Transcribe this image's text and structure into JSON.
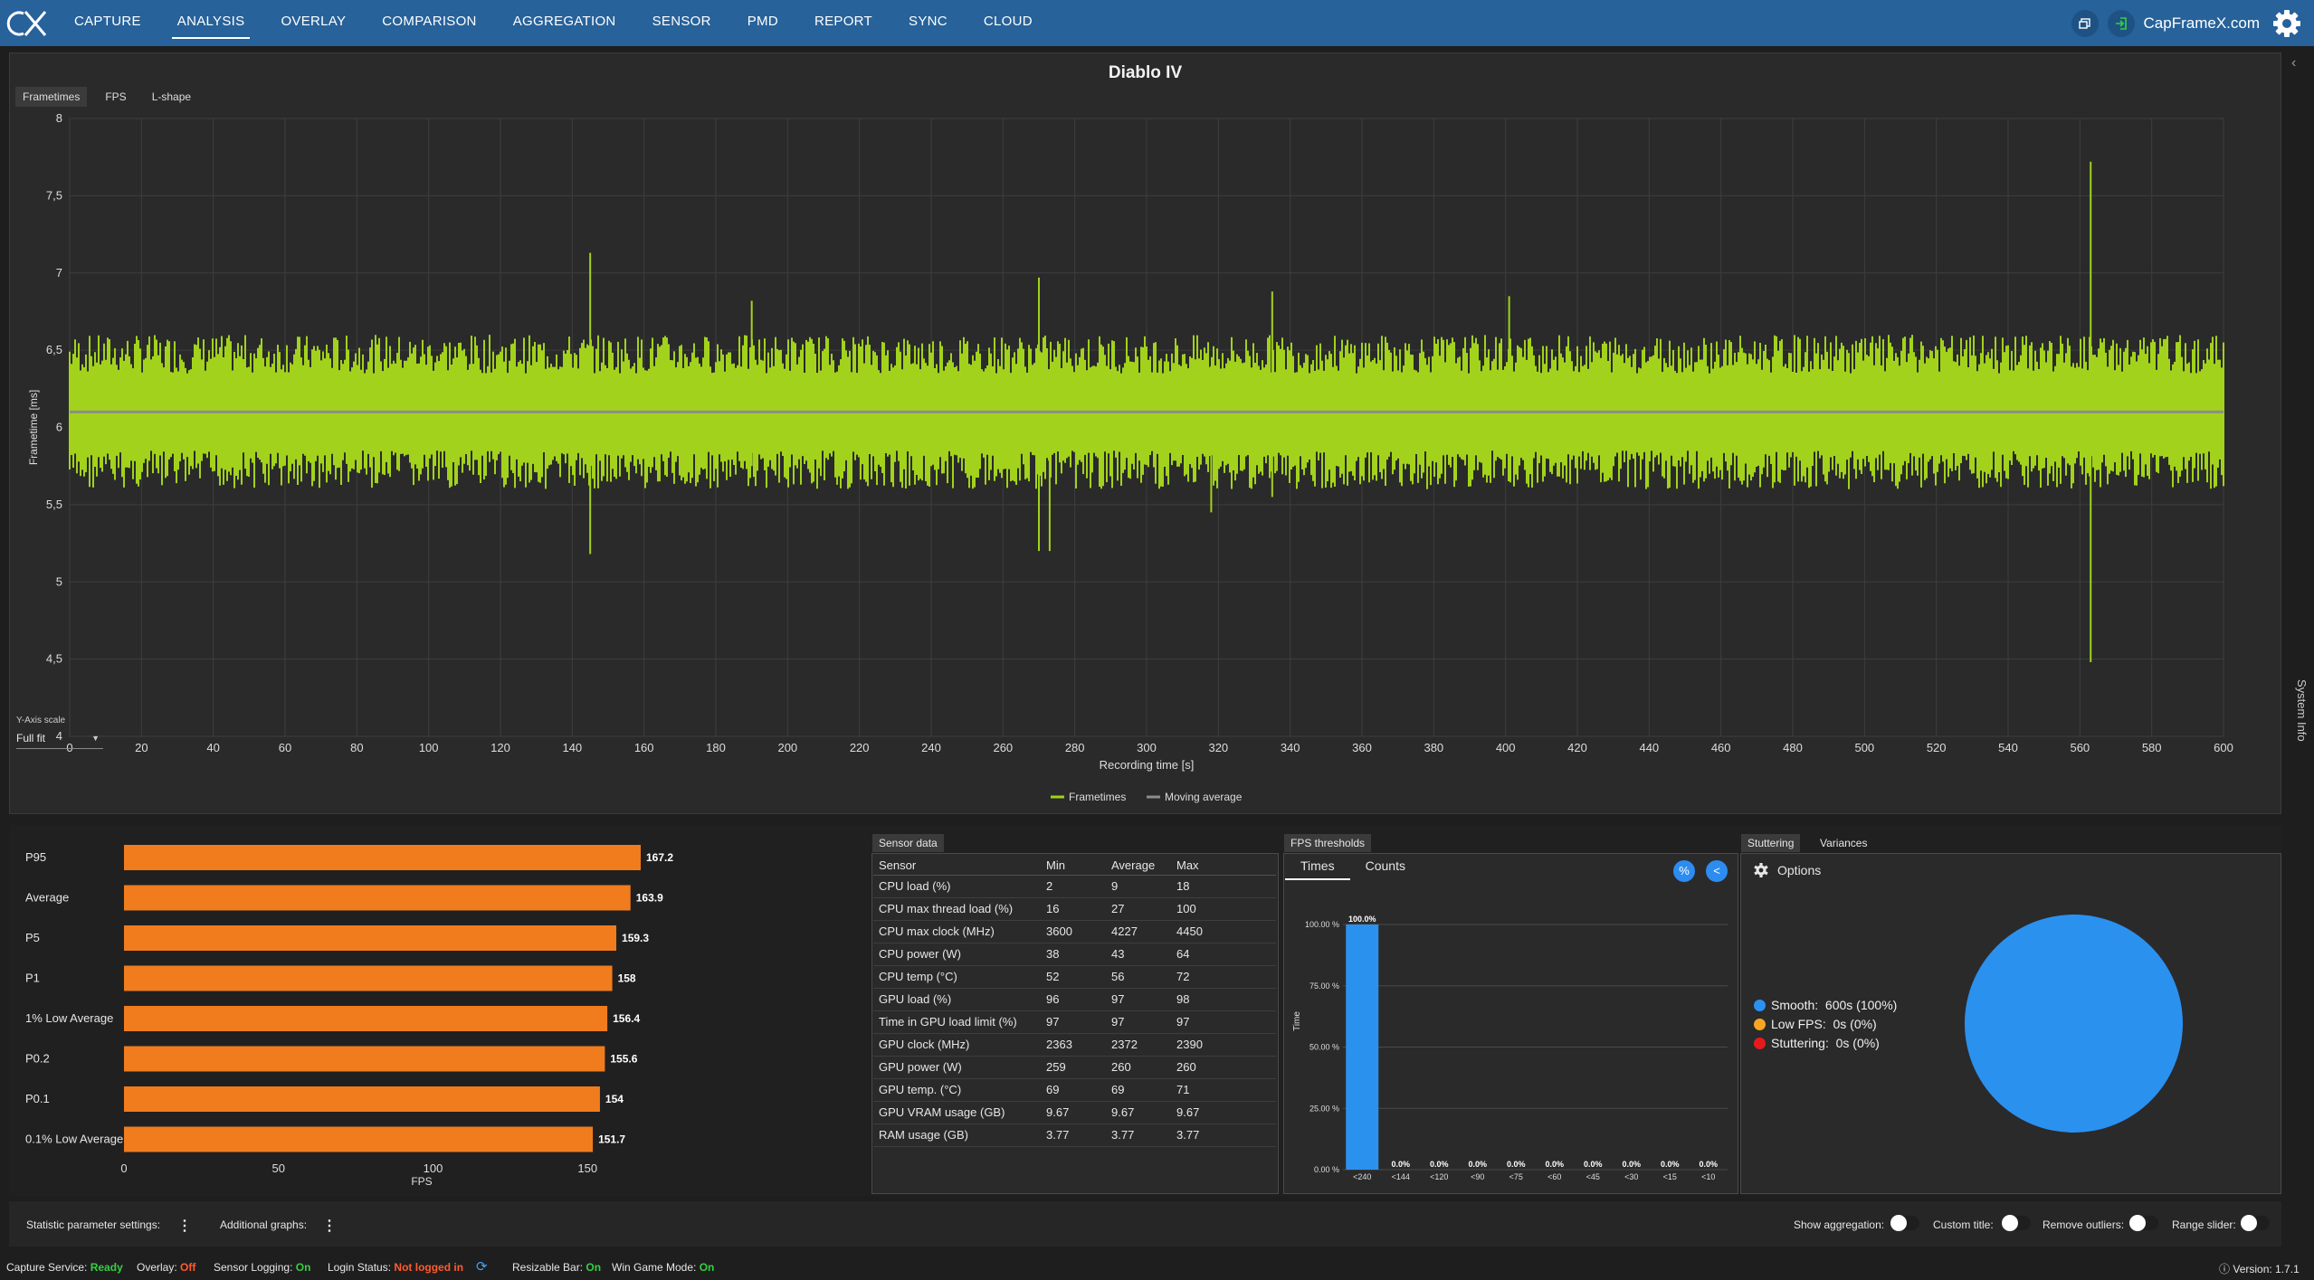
{
  "nav": {
    "items": [
      "CAPTURE",
      "ANALYSIS",
      "OVERLAY",
      "COMPARISON",
      "AGGREGATION",
      "SENSOR",
      "PMD",
      "REPORT",
      "SYNC",
      "CLOUD"
    ],
    "active": "ANALYSIS",
    "brand": "CapFrameX.com"
  },
  "main": {
    "title": "Diablo IV",
    "tabs": [
      "Frametimes",
      "FPS",
      "L-shape"
    ],
    "active_tab": "Frametimes",
    "y_scale_label": "Y-Axis scale",
    "y_scale_value": "Full fit"
  },
  "side": {
    "system_info": "System Info"
  },
  "chart_data": [
    {
      "type": "line",
      "title": "",
      "xlabel": "Recording time [s]",
      "ylabel": "Frametime [ms]",
      "xlim": [
        0,
        600
      ],
      "ylim": [
        4,
        8
      ],
      "x_ticks": [
        0,
        20,
        40,
        60,
        80,
        100,
        120,
        140,
        160,
        180,
        200,
        220,
        240,
        260,
        280,
        300,
        320,
        340,
        360,
        380,
        400,
        420,
        440,
        460,
        480,
        500,
        520,
        540,
        560,
        580,
        600
      ],
      "y_ticks": [
        "4",
        "4,5",
        "5",
        "5,5",
        "6",
        "6,5",
        "7",
        "7,5",
        "8"
      ],
      "grid": true,
      "legend_position": "bottom-center",
      "series": [
        {
          "name": "Frametimes",
          "color": "#a2d21c",
          "band": [
            5.85,
            6.35
          ],
          "spikes": [
            [
              145,
              7.13,
              5.18
            ],
            [
              190,
              6.82,
              5.75
            ],
            [
              270,
              6.97,
              5.2
            ],
            [
              273,
              6.05,
              5.2
            ],
            [
              318,
              6.4,
              5.45
            ],
            [
              335,
              6.88,
              5.55
            ],
            [
              401,
              6.85,
              5.9
            ],
            [
              563,
              7.72,
              4.48
            ],
            [
              600,
              6.55,
              5.62
            ]
          ]
        },
        {
          "name": "Moving average",
          "color": "#8c8c8c",
          "value": 6.1
        }
      ]
    },
    {
      "type": "bar",
      "orientation": "horizontal",
      "xlabel": "FPS",
      "xlim": [
        0,
        167.2
      ],
      "x_ticks": [
        0,
        50,
        100,
        150
      ],
      "color": "#f07c1e",
      "categories": [
        "P95",
        "Average",
        "P5",
        "P1",
        "1% Low Average",
        "P0.2",
        "P0.1",
        "0.1% Low Average"
      ],
      "values": [
        167.2,
        163.9,
        159.3,
        158,
        156.4,
        155.6,
        154,
        151.7
      ],
      "labels": [
        "167.2",
        "163.9",
        "159.3",
        "158",
        "156.4",
        "155.6",
        "154",
        "151.7"
      ]
    },
    {
      "type": "table",
      "tab": "Sensor data",
      "columns": [
        "Sensor",
        "Min",
        "Average",
        "Max"
      ],
      "rows": [
        [
          "CPU load (%)",
          "2",
          "9",
          "18"
        ],
        [
          "CPU max thread load (%)",
          "16",
          "27",
          "100"
        ],
        [
          "CPU max clock (MHz)",
          "3600",
          "4227",
          "4450"
        ],
        [
          "CPU power (W)",
          "38",
          "43",
          "64"
        ],
        [
          "CPU temp (°C)",
          "52",
          "56",
          "72"
        ],
        [
          "GPU load (%)",
          "96",
          "97",
          "98"
        ],
        [
          "Time in GPU load limit (%)",
          "97",
          "97",
          "97"
        ],
        [
          "GPU clock (MHz)",
          "2363",
          "2372",
          "2390"
        ],
        [
          "GPU power (W)",
          "259",
          "260",
          "260"
        ],
        [
          "GPU temp. (°C)",
          "69",
          "69",
          "71"
        ],
        [
          "GPU VRAM usage (GB)",
          "9.67",
          "9.67",
          "9.67"
        ],
        [
          "RAM usage (GB)",
          "3.77",
          "3.77",
          "3.77"
        ]
      ]
    },
    {
      "type": "bar",
      "tab": "FPS thresholds",
      "subtabs": [
        "Times",
        "Counts"
      ],
      "active_subtab": "Times",
      "ylabel": "Time",
      "ylim": [
        0,
        100
      ],
      "y_ticks": [
        "0.00 %",
        "25.00 %",
        "50.00 %",
        "75.00 %",
        "100.00 %"
      ],
      "color": "#2b91ef",
      "categories": [
        "<240",
        "<144",
        "<120",
        "<90",
        "<75",
        "<60",
        "<45",
        "<30",
        "<15",
        "<10"
      ],
      "values": [
        100,
        0,
        0,
        0,
        0,
        0,
        0,
        0,
        0,
        0
      ],
      "labels": [
        "100.0%",
        "0.0%",
        "0.0%",
        "0.0%",
        "0.0%",
        "0.0%",
        "0.0%",
        "0.0%",
        "0.0%",
        "0.0%"
      ],
      "buttons": [
        "%",
        "<"
      ]
    },
    {
      "type": "pie",
      "tabs": [
        "Stuttering",
        "Variances"
      ],
      "active_tab": "Stuttering",
      "options_label": "Options",
      "slices": [
        {
          "name": "Smooth",
          "value": 100,
          "label": "600s (100%)",
          "color": "#2b91ef"
        },
        {
          "name": "Low FPS",
          "value": 0,
          "label": "0s (0%)",
          "color": "#f5a623"
        },
        {
          "name": "Stuttering",
          "value": 0,
          "label": "0s (0%)",
          "color": "#e8191d"
        }
      ]
    }
  ],
  "settings": {
    "statistic_label": "Statistic parameter settings:",
    "additional_label": "Additional graphs:",
    "show_aggregation": "Show aggregation:",
    "custom_title": "Custom title:",
    "remove_outliers": "Remove outliers:",
    "range_slider": "Range slider:"
  },
  "status": {
    "capture_service_label": "Capture Service:",
    "capture_service_value": "Ready",
    "overlay_label": "Overlay:",
    "overlay_value": "Off",
    "sensor_logging_label": "Sensor Logging:",
    "sensor_logging_value": "On",
    "login_label": "Login Status:",
    "login_value": "Not logged in",
    "resizable_bar_label": "Resizable Bar:",
    "resizable_bar_value": "On",
    "win_game_mode_label": "Win Game Mode:",
    "win_game_mode_value": "On",
    "version": "Version: 1.7.1"
  }
}
